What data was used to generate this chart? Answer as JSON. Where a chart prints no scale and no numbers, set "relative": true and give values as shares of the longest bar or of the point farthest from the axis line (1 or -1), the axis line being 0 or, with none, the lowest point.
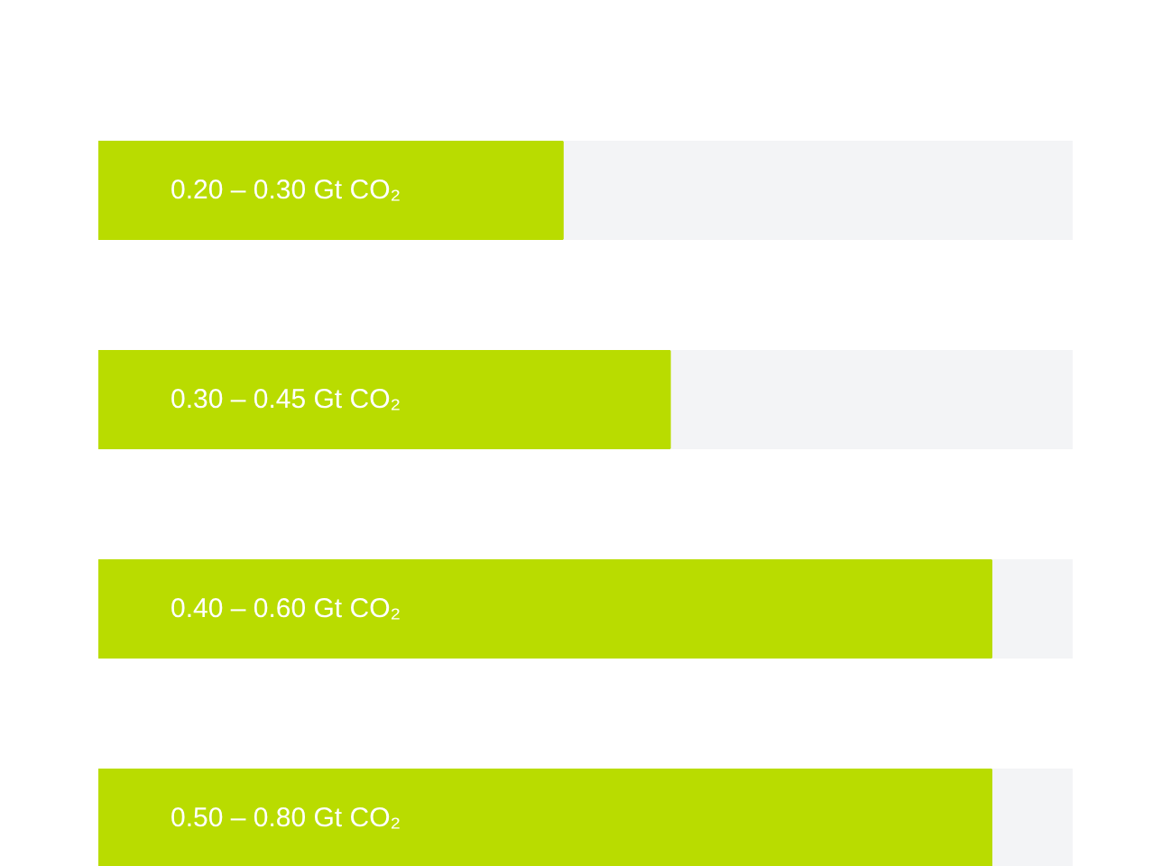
{
  "chart_data": {
    "type": "bar",
    "orientation": "horizontal",
    "relative": true,
    "categories": [
      null,
      null,
      null,
      null
    ],
    "values": [
      0.52,
      0.64,
      1,
      1
    ],
    "color": "#b9dc00",
    "annotations": [
      "0.20 – 0.30 Gt CO₂",
      "0.30 – 0.45 Gt CO₂",
      "0.40 – 0.60 Gt CO₂",
      "0.50 – 0.80 Gt CO₂"
    ]
  }
}
